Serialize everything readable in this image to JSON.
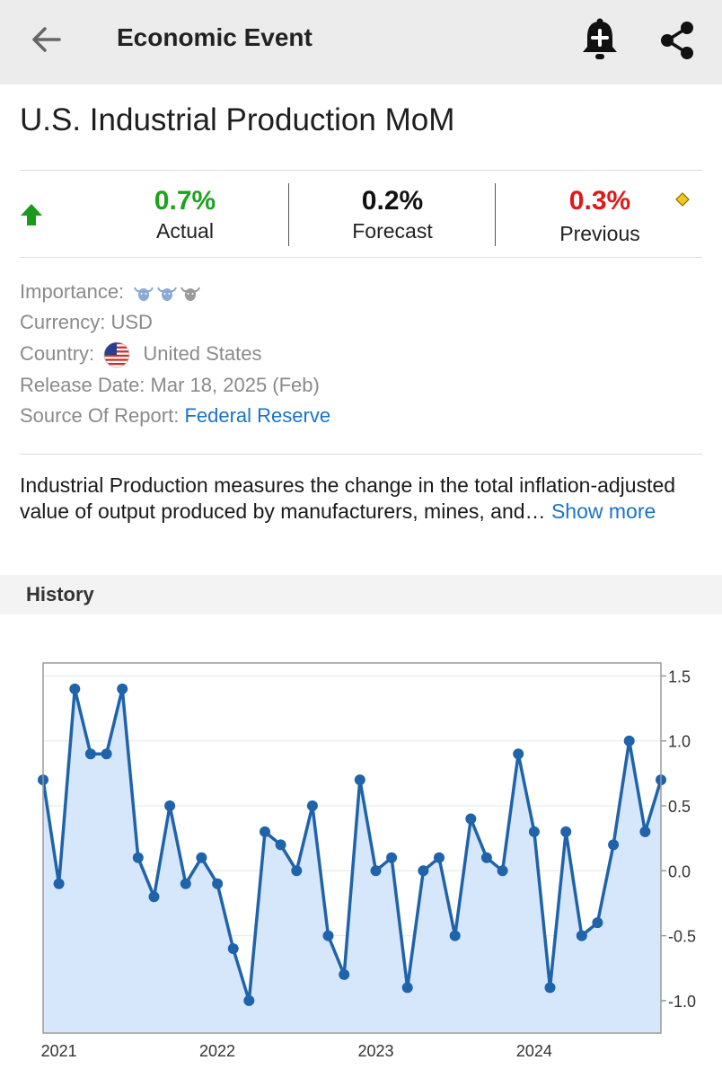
{
  "header": {
    "title": "Economic Event",
    "back_icon": "arrow-left-icon",
    "bell_icon": "bell-plus-icon",
    "share_icon": "share-icon"
  },
  "event": {
    "title": "U.S. Industrial Production MoM"
  },
  "stats": {
    "trend_icon": "arrow-up-icon",
    "actual": {
      "value": "0.7%",
      "label": "Actual"
    },
    "forecast": {
      "value": "0.2%",
      "label": "Forecast"
    },
    "previous": {
      "value": "0.3%",
      "label": "Previous"
    },
    "revised_icon": "diamond-icon"
  },
  "details": {
    "importance_label": "Importance:",
    "importance_level": 2,
    "currency_label": "Currency:",
    "currency_value": "USD",
    "country_label": "Country:",
    "country_value": "United States",
    "release_label": "Release Date:",
    "release_value": "Mar 18, 2025 (Feb)",
    "source_label": "Source Of Report:",
    "source_value": "Federal Reserve"
  },
  "description": {
    "text": "Industrial Production measures the change in the total inflation-adjusted value of output produced by manufacturers, mines, and…",
    "more_label": "Show more"
  },
  "history": {
    "label": "History"
  },
  "colors": {
    "actual": "#1ea31e",
    "previous": "#e01818",
    "link": "#1a73c8",
    "line": "#1f63aa",
    "fill": "#d6e7fb"
  },
  "chart_data": {
    "type": "line",
    "x_ticks": [
      "2021",
      "2022",
      "2023",
      "2024"
    ],
    "x_tick_index": [
      1,
      11,
      21,
      31
    ],
    "y_ticks": [
      1.5,
      1.0,
      0.5,
      0.0,
      -0.5,
      -1.0
    ],
    "y_tick_labels": [
      "1.5",
      "1.0",
      "0.5",
      "0.0",
      "-0.5",
      "-1.0"
    ],
    "ylim": [
      -1.25,
      1.6
    ],
    "grid": true,
    "values": [
      0.7,
      -0.1,
      1.4,
      0.9,
      0.9,
      1.4,
      0.1,
      -0.2,
      0.5,
      -0.1,
      0.1,
      -0.1,
      -0.6,
      -1.0,
      0.3,
      0.2,
      0.0,
      0.5,
      -0.5,
      -0.8,
      0.7,
      0.0,
      0.1,
      -0.9,
      0.0,
      0.1,
      -0.5,
      0.4,
      0.1,
      0.0,
      0.9,
      0.3,
      -0.9,
      0.3,
      -0.5,
      -0.4,
      0.2,
      1.0,
      0.3,
      0.7
    ]
  }
}
